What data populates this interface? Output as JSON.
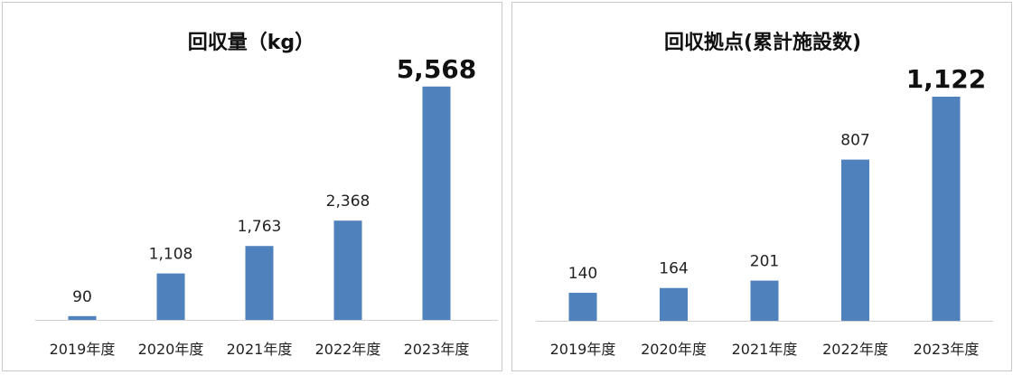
{
  "chart_data": [
    {
      "type": "bar",
      "title": "回収量（kg）",
      "categories": [
        "2019年度",
        "2020年度",
        "2021年度",
        "2022年度",
        "2023年度"
      ],
      "values": [
        90,
        1108,
        1763,
        2368,
        5568
      ],
      "data_labels": [
        "90",
        "1,108",
        "1,763",
        "2,368",
        "5,568"
      ],
      "highlight_index": 4,
      "color": "#4f81bd",
      "ylim": [
        0,
        5800
      ],
      "grid": false,
      "legend": "none"
    },
    {
      "type": "bar",
      "title": "回収拠点(累計施設数)",
      "categories": [
        "2019年度",
        "2020年度",
        "2021年度",
        "2022年度",
        "2023年度"
      ],
      "values": [
        140,
        164,
        201,
        807,
        1122
      ],
      "data_labels": [
        "140",
        "164",
        "201",
        "807",
        "1,122"
      ],
      "highlight_index": 4,
      "color": "#4f81bd",
      "ylim": [
        0,
        1140
      ],
      "grid": false,
      "legend": "none"
    }
  ]
}
